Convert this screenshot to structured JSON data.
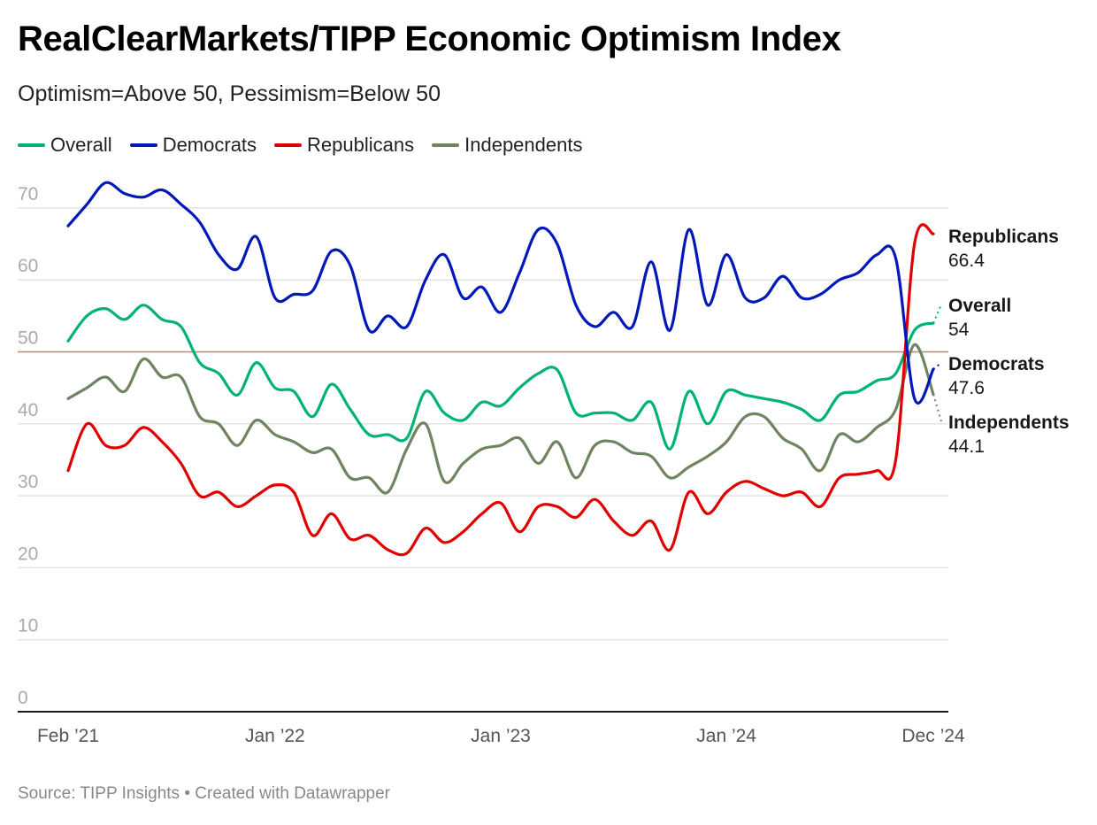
{
  "header": {
    "title": "RealClearMarkets/TIPP Economic Optimism Index",
    "subtitle": "Optimism=Above 50, Pessimism=Below 50"
  },
  "footer": {
    "source": "Source: TIPP Insights • Created with Datawrapper"
  },
  "chart_data": {
    "type": "line",
    "title": "RealClearMarkets/TIPP Economic Optimism Index",
    "subtitle": "Optimism=Above 50, Pessimism=Below 50",
    "xlabel": "",
    "ylabel": "",
    "ylim": [
      0,
      75
    ],
    "yticks": [
      0,
      10,
      20,
      30,
      40,
      50,
      60,
      70
    ],
    "grid": true,
    "reference_line": {
      "value": 50,
      "color": "#d07a7a"
    },
    "legend_position": "top-left",
    "x_start": "2021-02",
    "x_end": "2024-12",
    "x_tick_labels": [
      {
        "month_index": 0,
        "label": "Feb ’21"
      },
      {
        "month_index": 11,
        "label": "Jan ’22"
      },
      {
        "month_index": 23,
        "label": "Jan ’23"
      },
      {
        "month_index": 35,
        "label": "Jan ’24"
      },
      {
        "month_index": 46,
        "label": "Dec ’24"
      }
    ],
    "x": [
      "2021-02",
      "2021-03",
      "2021-04",
      "2021-05",
      "2021-06",
      "2021-07",
      "2021-08",
      "2021-09",
      "2021-10",
      "2021-11",
      "2021-12",
      "2022-01",
      "2022-02",
      "2022-03",
      "2022-04",
      "2022-05",
      "2022-06",
      "2022-07",
      "2022-08",
      "2022-09",
      "2022-10",
      "2022-11",
      "2022-12",
      "2023-01",
      "2023-02",
      "2023-03",
      "2023-04",
      "2023-05",
      "2023-06",
      "2023-07",
      "2023-08",
      "2023-09",
      "2023-10",
      "2023-11",
      "2023-12",
      "2024-01",
      "2024-02",
      "2024-03",
      "2024-04",
      "2024-05",
      "2024-06",
      "2024-07",
      "2024-08",
      "2024-09",
      "2024-10",
      "2024-11",
      "2024-12"
    ],
    "series": [
      {
        "name": "Overall",
        "color": "#00b374",
        "end_label": "Overall",
        "end_value": "54",
        "values": [
          51.5,
          55,
          56,
          54.5,
          56.5,
          54.5,
          53.5,
          48.5,
          47,
          44,
          48.5,
          45,
          44.5,
          41,
          45.5,
          42,
          38.5,
          38.5,
          38,
          44.5,
          41.5,
          40.5,
          43,
          42.5,
          45,
          47,
          47.5,
          41.5,
          41.5,
          41.5,
          40.5,
          43,
          36.5,
          44.5,
          40,
          44.5,
          44,
          43.5,
          43,
          42,
          40.5,
          44,
          44.5,
          46,
          47,
          53,
          54
        ]
      },
      {
        "name": "Democrats",
        "color": "#0019b8",
        "end_label": "Democrats",
        "end_value": "47.6",
        "values": [
          67.5,
          70.5,
          73.5,
          72,
          71.5,
          72.5,
          70.5,
          68,
          63.5,
          61.5,
          66,
          57.5,
          58,
          58.5,
          64,
          62,
          53,
          55,
          53.5,
          60,
          63.5,
          57.5,
          59,
          55.5,
          61,
          67,
          65,
          56.5,
          53.5,
          55.5,
          53.5,
          62.5,
          53,
          67,
          56.5,
          63.5,
          57.5,
          57.5,
          60.5,
          57.5,
          58,
          60,
          61,
          63.5,
          63,
          43.5,
          47.6
        ]
      },
      {
        "name": "Republicans",
        "color": "#e00000",
        "end_label": "Republicans",
        "end_value": "66.4",
        "values": [
          33.5,
          40,
          37,
          37,
          39.5,
          37.5,
          34.5,
          30,
          30.5,
          28.5,
          30,
          31.5,
          30.5,
          24.5,
          27.5,
          24,
          24.5,
          22.5,
          22,
          25.5,
          23.5,
          25,
          27.5,
          29,
          25,
          28.5,
          28.5,
          27,
          29.5,
          26.5,
          24.5,
          26.5,
          22.5,
          30.5,
          27.5,
          30.5,
          32,
          31,
          30,
          30.5,
          28.5,
          32.5,
          33,
          33.5,
          35,
          65,
          66.4
        ]
      },
      {
        "name": "Independents",
        "color": "#6f8460",
        "end_label": "Independents",
        "end_value": "44.1",
        "values": [
          43.5,
          45,
          46.5,
          44.5,
          49,
          46.5,
          46.5,
          41,
          40,
          37,
          40.5,
          38.5,
          37.5,
          36,
          36.5,
          32.5,
          32.5,
          30.5,
          36.5,
          40,
          32,
          34.5,
          36.5,
          37,
          38,
          34.5,
          37.5,
          32.5,
          37,
          37.5,
          36,
          35.5,
          32.5,
          34,
          35.5,
          37.5,
          41,
          41,
          38,
          36.5,
          33.5,
          38.5,
          37.5,
          39.5,
          42,
          51,
          44.1
        ]
      }
    ]
  }
}
